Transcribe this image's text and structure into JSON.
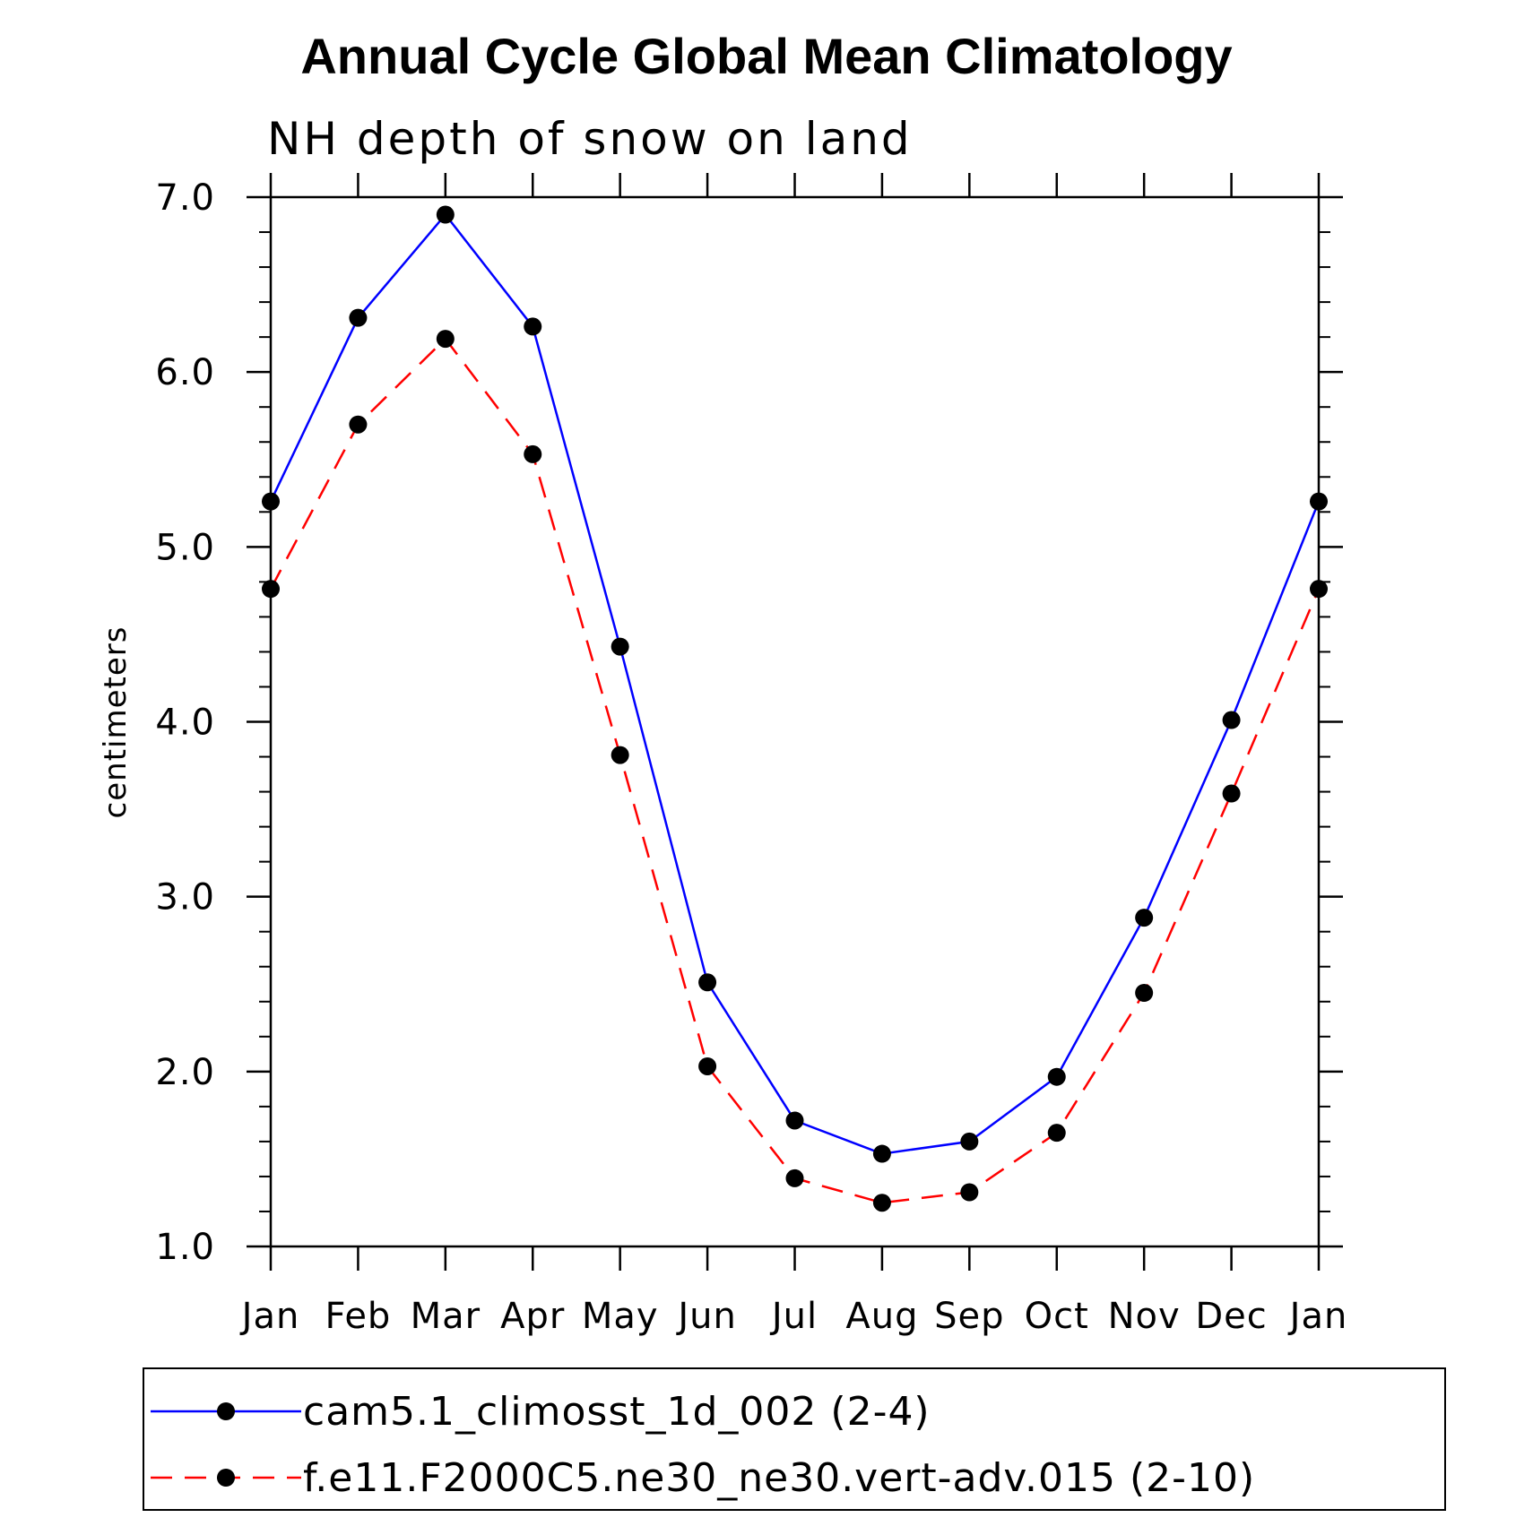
{
  "chart_data": {
    "type": "line",
    "title": "Annual Cycle Global Mean Climatology",
    "subtitle": "NH depth of snow on land",
    "xlabel": "",
    "ylabel": "centimeters",
    "categories": [
      "Jan",
      "Feb",
      "Mar",
      "Apr",
      "May",
      "Jun",
      "Jul",
      "Aug",
      "Sep",
      "Oct",
      "Nov",
      "Dec",
      "Jan"
    ],
    "ylim": [
      1.0,
      7.0
    ],
    "yticks": [
      "1.0",
      "2.0",
      "3.0",
      "4.0",
      "5.0",
      "6.0",
      "7.0"
    ],
    "legend_position": "bottom",
    "series": [
      {
        "name": "cam5.1_climosst_1d_002 (2-4)",
        "color": "#0000ff",
        "dash": "solid",
        "marker": "circle",
        "values": [
          5.26,
          6.31,
          6.9,
          6.26,
          4.43,
          2.51,
          1.72,
          1.53,
          1.6,
          1.97,
          2.88,
          4.01,
          5.26
        ]
      },
      {
        "name": "f.e11.F2000C5.ne30_ne30.vert-adv.015 (2-10)",
        "color": "#ff0000",
        "dash": "dashed",
        "marker": "circle",
        "values": [
          4.76,
          5.7,
          6.19,
          5.53,
          3.81,
          2.03,
          1.39,
          1.25,
          1.31,
          1.65,
          2.45,
          3.59,
          4.76
        ]
      }
    ]
  }
}
